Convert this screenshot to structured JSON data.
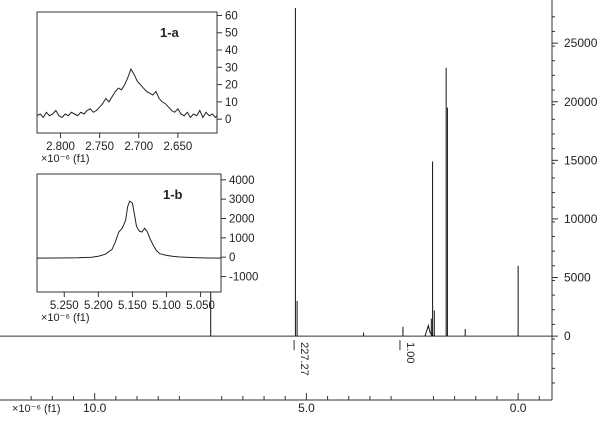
{
  "chart_data": [
    {
      "id": "main",
      "type": "line",
      "title": "",
      "xlabel": "×10⁻⁶ (f1)",
      "ylabel": "",
      "x_reversed": true,
      "xlim": [
        12.0,
        -0.8
      ],
      "ylim": [
        -4000,
        28000
      ],
      "x_ticks": [
        10.0,
        5.0,
        0.0
      ],
      "x_tick_labels": [
        "10.0",
        "5.0",
        "0.0"
      ],
      "y_ticks": [
        0,
        5000,
        10000,
        15000,
        20000,
        25000
      ],
      "y_tick_labels": [
        "0",
        "5000",
        "10000",
        "15000",
        "20000",
        "25000"
      ],
      "grid": false,
      "baseline": 0,
      "series": [
        {
          "peaks": [
            {
              "x": 7.26,
              "y": 5600
            },
            {
              "x": 5.26,
              "y": 28000
            },
            {
              "x": 5.22,
              "y": 3000
            },
            {
              "x": 3.65,
              "y": 300
            },
            {
              "x": 2.72,
              "y": 800
            },
            {
              "x": 2.05,
              "y": 1500
            },
            {
              "x": 2.02,
              "y": 14900
            },
            {
              "x": 1.98,
              "y": 2200
            },
            {
              "x": 1.7,
              "y": 22900
            },
            {
              "x": 1.67,
              "y": 19500
            },
            {
              "x": 1.25,
              "y": 600
            },
            {
              "x": 0.0,
              "y": 6000
            }
          ]
        }
      ],
      "annotations": [
        {
          "text": "227.27",
          "x": 5.22
        },
        {
          "text": "1.00",
          "x": 2.72
        }
      ]
    },
    {
      "id": "inset-1a",
      "type": "line",
      "title": "1-a",
      "xlabel": "×10⁻⁶ (f1)",
      "ylabel": "",
      "x_reversed": true,
      "xlim": [
        2.83,
        2.6
      ],
      "ylim": [
        -8,
        62
      ],
      "x_ticks": [
        2.8,
        2.75,
        2.7,
        2.65
      ],
      "x_tick_labels": [
        "2.800",
        "2.750",
        "2.700",
        "2.650"
      ],
      "y_ticks": [
        0,
        10,
        20,
        30,
        40,
        50,
        60
      ],
      "y_tick_labels": [
        "0",
        "10",
        "20",
        "30",
        "40",
        "50",
        "60"
      ],
      "grid": false,
      "series": [
        {
          "x": [
            2.83,
            2.826,
            2.822,
            2.818,
            2.814,
            2.81,
            2.806,
            2.802,
            2.798,
            2.794,
            2.79,
            2.786,
            2.782,
            2.778,
            2.774,
            2.77,
            2.766,
            2.762,
            2.758,
            2.754,
            2.75,
            2.746,
            2.742,
            2.738,
            2.734,
            2.73,
            2.726,
            2.722,
            2.718,
            2.714,
            2.71,
            2.706,
            2.702,
            2.698,
            2.694,
            2.69,
            2.686,
            2.682,
            2.678,
            2.674,
            2.67,
            2.666,
            2.662,
            2.658,
            2.654,
            2.65,
            2.646,
            2.642,
            2.638,
            2.634,
            2.63,
            2.626,
            2.622,
            2.618,
            2.614,
            2.61,
            2.606,
            2.602,
            2.6
          ],
          "y": [
            2,
            3,
            1,
            4,
            2,
            3,
            5,
            2,
            1,
            3,
            2,
            4,
            3,
            2,
            4,
            3,
            5,
            6,
            4,
            5,
            7,
            9,
            12,
            10,
            13,
            16,
            18,
            17,
            20,
            24,
            29,
            26,
            22,
            20,
            18,
            16,
            15,
            14,
            16,
            12,
            10,
            9,
            7,
            5,
            4,
            6,
            3,
            2,
            4,
            1,
            3,
            2,
            5,
            1,
            4,
            2,
            3,
            1,
            2
          ]
        }
      ]
    },
    {
      "id": "inset-1b",
      "type": "line",
      "title": "1-b",
      "xlabel": "×10⁻⁶ (f1)",
      "ylabel": "",
      "x_reversed": true,
      "xlim": [
        5.29,
        5.02
      ],
      "ylim": [
        -1800,
        4300
      ],
      "x_ticks": [
        5.25,
        5.2,
        5.15,
        5.1,
        5.05
      ],
      "x_tick_labels": [
        "5.250",
        "5.200",
        "5.150",
        "5.100",
        "5.050"
      ],
      "y_ticks": [
        -1000,
        0,
        1000,
        2000,
        3000,
        4000
      ],
      "y_tick_labels": [
        "-1000",
        "0",
        "1000",
        "2000",
        "3000",
        "4000"
      ],
      "grid": false,
      "series": [
        {
          "x": [
            5.29,
            5.26,
            5.23,
            5.21,
            5.2,
            5.19,
            5.18,
            5.175,
            5.17,
            5.165,
            5.16,
            5.157,
            5.154,
            5.15,
            5.147,
            5.144,
            5.14,
            5.136,
            5.132,
            5.128,
            5.124,
            5.12,
            5.115,
            5.11,
            5.1,
            5.09,
            5.08,
            5.06,
            5.04,
            5.02
          ],
          "y": [
            -50,
            -40,
            -30,
            0,
            50,
            150,
            400,
            800,
            1300,
            1500,
            1900,
            2600,
            2900,
            2800,
            2200,
            1600,
            1350,
            1300,
            1500,
            1300,
            950,
            650,
            350,
            180,
            90,
            40,
            10,
            -20,
            -40,
            -50
          ]
        }
      ]
    }
  ]
}
